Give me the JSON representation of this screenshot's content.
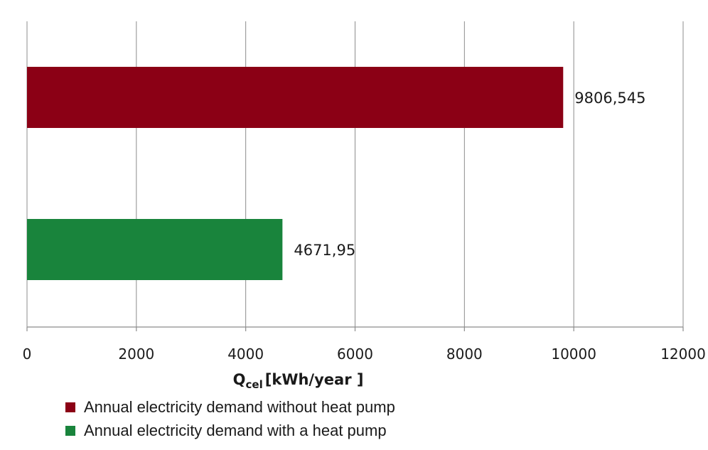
{
  "chart_data": {
    "type": "bar",
    "orientation": "horizontal",
    "series": [
      {
        "name": "Annual electricity demand without heat pump",
        "value": 9806.545,
        "label": "9806,545",
        "color": "#8b0015"
      },
      {
        "name": "Annual electricity demand with a heat pump",
        "value": 4671.95,
        "label": "4671,95",
        "color": "#19843c"
      }
    ],
    "xlabel": {
      "main": "Q",
      "sub": "c el",
      "rest": "[kWh/year ]"
    },
    "xlim": [
      0,
      12000
    ],
    "xticks": [
      "0",
      "2000",
      "4000",
      "6000",
      "8000",
      "10000",
      "12000"
    ],
    "grid": true,
    "legend_position": "bottom-left"
  }
}
